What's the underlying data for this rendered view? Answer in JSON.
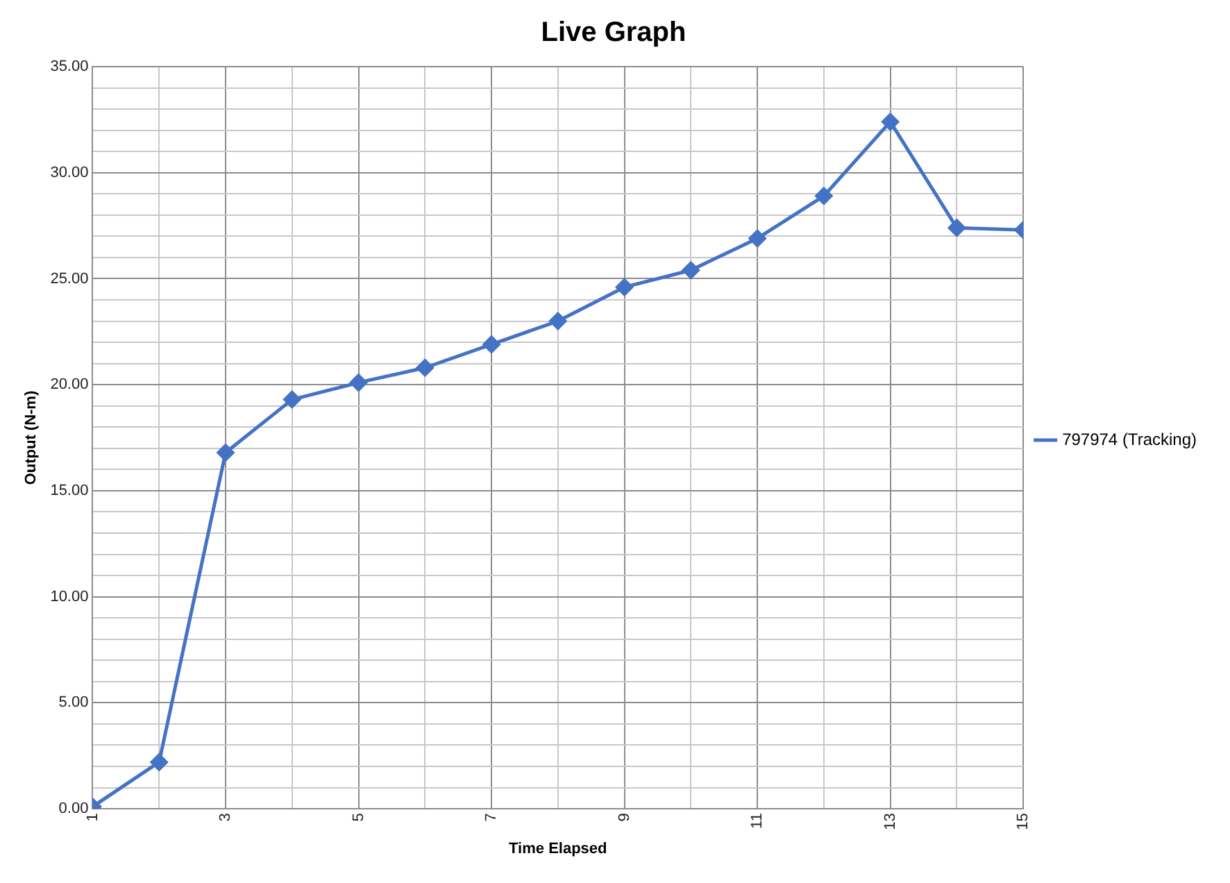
{
  "chart_data": {
    "type": "line",
    "title": "Live Graph",
    "xlabel": "Time Elapsed",
    "ylabel": "Output (N-m)",
    "x": [
      1,
      2,
      3,
      4,
      5,
      6,
      7,
      8,
      9,
      10,
      11,
      12,
      13,
      14,
      15
    ],
    "series": [
      {
        "name": "797974 (Tracking)",
        "color": "#4472c4",
        "values": [
          0.1,
          2.2,
          16.8,
          19.3,
          20.1,
          20.8,
          21.9,
          23.0,
          24.6,
          25.4,
          26.9,
          28.9,
          32.4,
          27.4,
          27.3
        ]
      }
    ],
    "xlim": [
      1,
      15
    ],
    "xticks": [
      1,
      {
        "value": 2,
        "label": null
      },
      3,
      {
        "value": 4,
        "label": null
      },
      5,
      {
        "value": 6,
        "label": null
      },
      7,
      {
        "value": 8,
        "label": null
      },
      9,
      {
        "value": 10,
        "label": null
      },
      11,
      {
        "value": 12,
        "label": null
      },
      13,
      {
        "value": 14,
        "label": null
      },
      15
    ],
    "ylim": [
      0,
      35
    ],
    "yticks": [
      {
        "value": 0,
        "label": "0.00"
      },
      {
        "value": 1,
        "label": null
      },
      {
        "value": 2,
        "label": null
      },
      {
        "value": 3,
        "label": null
      },
      {
        "value": 4,
        "label": null
      },
      {
        "value": 5,
        "label": "5.00"
      },
      {
        "value": 6,
        "label": null
      },
      {
        "value": 7,
        "label": null
      },
      {
        "value": 8,
        "label": null
      },
      {
        "value": 9,
        "label": null
      },
      {
        "value": 10,
        "label": "10.00"
      },
      {
        "value": 11,
        "label": null
      },
      {
        "value": 12,
        "label": null
      },
      {
        "value": 13,
        "label": null
      },
      {
        "value": 14,
        "label": null
      },
      {
        "value": 15,
        "label": "15.00"
      },
      {
        "value": 16,
        "label": null
      },
      {
        "value": 17,
        "label": null
      },
      {
        "value": 18,
        "label": null
      },
      {
        "value": 19,
        "label": null
      },
      {
        "value": 20,
        "label": "20.00"
      },
      {
        "value": 21,
        "label": null
      },
      {
        "value": 22,
        "label": null
      },
      {
        "value": 23,
        "label": null
      },
      {
        "value": 24,
        "label": null
      },
      {
        "value": 25,
        "label": "25.00"
      },
      {
        "value": 26,
        "label": null
      },
      {
        "value": 27,
        "label": null
      },
      {
        "value": 28,
        "label": null
      },
      {
        "value": 29,
        "label": null
      },
      {
        "value": 30,
        "label": "30.00"
      },
      {
        "value": 31,
        "label": null
      },
      {
        "value": 32,
        "label": null
      },
      {
        "value": 33,
        "label": null
      },
      {
        "value": 34,
        "label": null
      },
      {
        "value": 35,
        "label": "35.00"
      }
    ],
    "grid": true,
    "legend": "right",
    "marker": "diamond",
    "line_style": "solid"
  }
}
